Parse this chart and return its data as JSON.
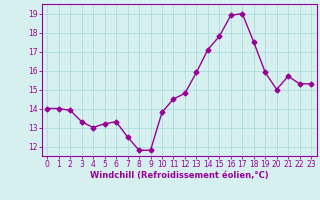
{
  "x": [
    0,
    1,
    2,
    3,
    4,
    5,
    6,
    7,
    8,
    9,
    10,
    11,
    12,
    13,
    14,
    15,
    16,
    17,
    18,
    19,
    20,
    21,
    22,
    23
  ],
  "y": [
    14.0,
    14.0,
    13.9,
    13.3,
    13.0,
    13.2,
    13.3,
    12.5,
    11.8,
    11.8,
    13.8,
    14.5,
    14.8,
    15.9,
    17.1,
    17.8,
    18.9,
    19.0,
    17.5,
    15.9,
    15.0,
    15.7,
    15.3,
    15.3
  ],
  "line_color": "#990099",
  "marker": "D",
  "marker_size": 2.5,
  "line_width": 1.0,
  "bg_color": "#d6f0f0",
  "grid_color": "#aadddd",
  "xlabel": "Windchill (Refroidissement éolien,°C)",
  "xlabel_color": "#990099",
  "tick_color": "#990099",
  "ylim": [
    11.5,
    19.5
  ],
  "yticks": [
    12,
    13,
    14,
    15,
    16,
    17,
    18,
    19
  ],
  "xticks": [
    0,
    1,
    2,
    3,
    4,
    5,
    6,
    7,
    8,
    9,
    10,
    11,
    12,
    13,
    14,
    15,
    16,
    17,
    18,
    19,
    20,
    21,
    22,
    23
  ],
  "spine_color": "#990099",
  "tick_fontsize": 5.5,
  "xlabel_fontsize": 6.0
}
